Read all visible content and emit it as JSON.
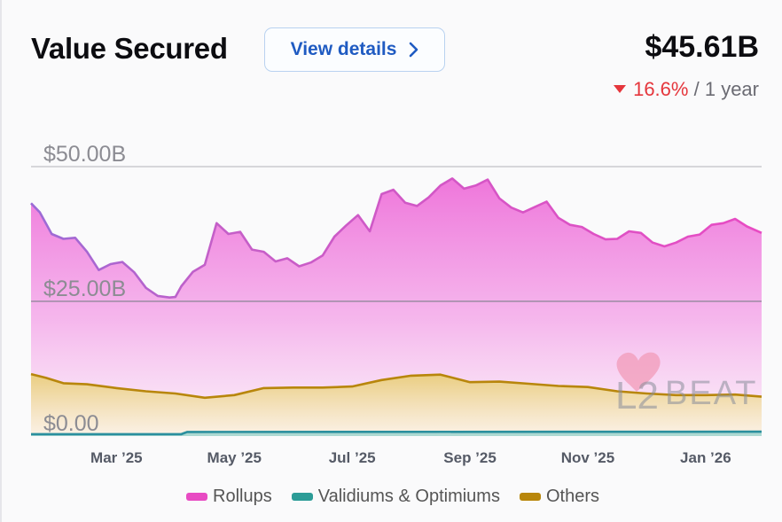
{
  "header": {
    "title": "Value Secured",
    "view_details_label": "View details",
    "total_value": "$45.61B",
    "change_value": "16.6%",
    "change_sep": "/",
    "change_period": "1 year"
  },
  "icons": {
    "chevron": "chevron-right-icon",
    "change_direction": "triangle-down-icon",
    "watermark": "l2beat-logo"
  },
  "watermark_text": "L2BEAT",
  "colors": {
    "rollups": "#e84bc3",
    "validiums": "#2c9c97",
    "others": "#b8860b",
    "down": "#e5363c",
    "button_text": "#1f5bc2"
  },
  "chart_data": {
    "type": "area",
    "stacked": true,
    "ylim": [
      0,
      50
    ],
    "y_ticks": [
      {
        "value": 0,
        "label": "$0.00"
      },
      {
        "value": 25,
        "label": "$25.00B"
      },
      {
        "value": 50,
        "label": "$50.00B"
      }
    ],
    "x_ticks": [
      {
        "x": 1.5,
        "label": "Mar ’25"
      },
      {
        "x": 3.5,
        "label": "May ’25"
      },
      {
        "x": 5.5,
        "label": "Jul ’25"
      },
      {
        "x": 7.5,
        "label": "Sep ’25"
      },
      {
        "x": 9.5,
        "label": "Nov ’25"
      },
      {
        "x": 11.5,
        "label": "Jan ’26"
      }
    ],
    "x_unit": "months since 2025-02-01 (approx.)",
    "xlim": [
      0.05,
      12.45
    ],
    "legend_position": "bottom",
    "grid": true,
    "series": [
      {
        "name": "Rollups",
        "color": "#e84bc3",
        "x": [
          0.05,
          0.2,
          0.4,
          0.6,
          0.8,
          1.0,
          1.2,
          1.4,
          1.6,
          1.8,
          2.0,
          2.2,
          2.4,
          2.5,
          2.6,
          2.8,
          3.0,
          3.2,
          3.4,
          3.6,
          3.8,
          4.0,
          4.2,
          4.4,
          4.6,
          4.8,
          5.0,
          5.2,
          5.4,
          5.6,
          5.8,
          6.0,
          6.2,
          6.4,
          6.6,
          6.8,
          7.0,
          7.2,
          7.4,
          7.6,
          7.8,
          8.0,
          8.2,
          8.4,
          8.6,
          8.8,
          9.0,
          9.2,
          9.4,
          9.6,
          9.8,
          10.0,
          10.2,
          10.4,
          10.6,
          10.8,
          11.0,
          11.2,
          11.4,
          11.6,
          11.8,
          12.0,
          12.2,
          12.45
        ],
        "values": [
          43.2,
          41.5,
          37.5,
          36.6,
          36.8,
          34.2,
          30.8,
          31.9,
          32.3,
          30.4,
          27.5,
          26.0,
          25.7,
          25.8,
          27.8,
          30.5,
          31.8,
          39.5,
          37.5,
          37.9,
          34.6,
          34.2,
          32.4,
          33.0,
          31.5,
          32.2,
          33.5,
          37.0,
          39.1,
          41.0,
          38.0,
          44.9,
          45.7,
          43.3,
          42.7,
          44.3,
          46.5,
          47.8,
          45.9,
          46.5,
          47.6,
          44.1,
          42.4,
          41.5,
          42.5,
          43.5,
          40.5,
          39.2,
          38.8,
          37.5,
          36.5,
          36.6,
          38.0,
          37.7,
          35.9,
          35.2,
          35.9,
          37.0,
          37.4,
          39.2,
          39.5,
          40.3,
          38.9,
          37.7
        ]
      },
      {
        "name": "Validiums & Optimiums",
        "color": "#2c9c97",
        "x": [
          0.05,
          2.6,
          2.7,
          12.45
        ],
        "values": [
          0.35,
          0.35,
          0.75,
          0.8
        ]
      },
      {
        "name": "Others",
        "color": "#b8860b",
        "x": [
          0.05,
          0.3,
          0.6,
          1.0,
          1.5,
          2.0,
          2.5,
          3.0,
          3.5,
          4.0,
          4.5,
          5.0,
          5.5,
          6.0,
          6.5,
          7.0,
          7.5,
          8.0,
          8.5,
          9.0,
          9.5,
          10.0,
          10.5,
          11.0,
          11.5,
          12.0,
          12.45
        ],
        "values": [
          11.5,
          10.8,
          9.8,
          9.6,
          8.9,
          8.3,
          7.9,
          7.1,
          7.6,
          8.9,
          9.0,
          9.0,
          9.2,
          10.4,
          11.2,
          11.4,
          10.0,
          10.1,
          9.7,
          9.3,
          9.1,
          8.3,
          7.9,
          7.6,
          7.6,
          7.7,
          7.3
        ]
      }
    ]
  }
}
